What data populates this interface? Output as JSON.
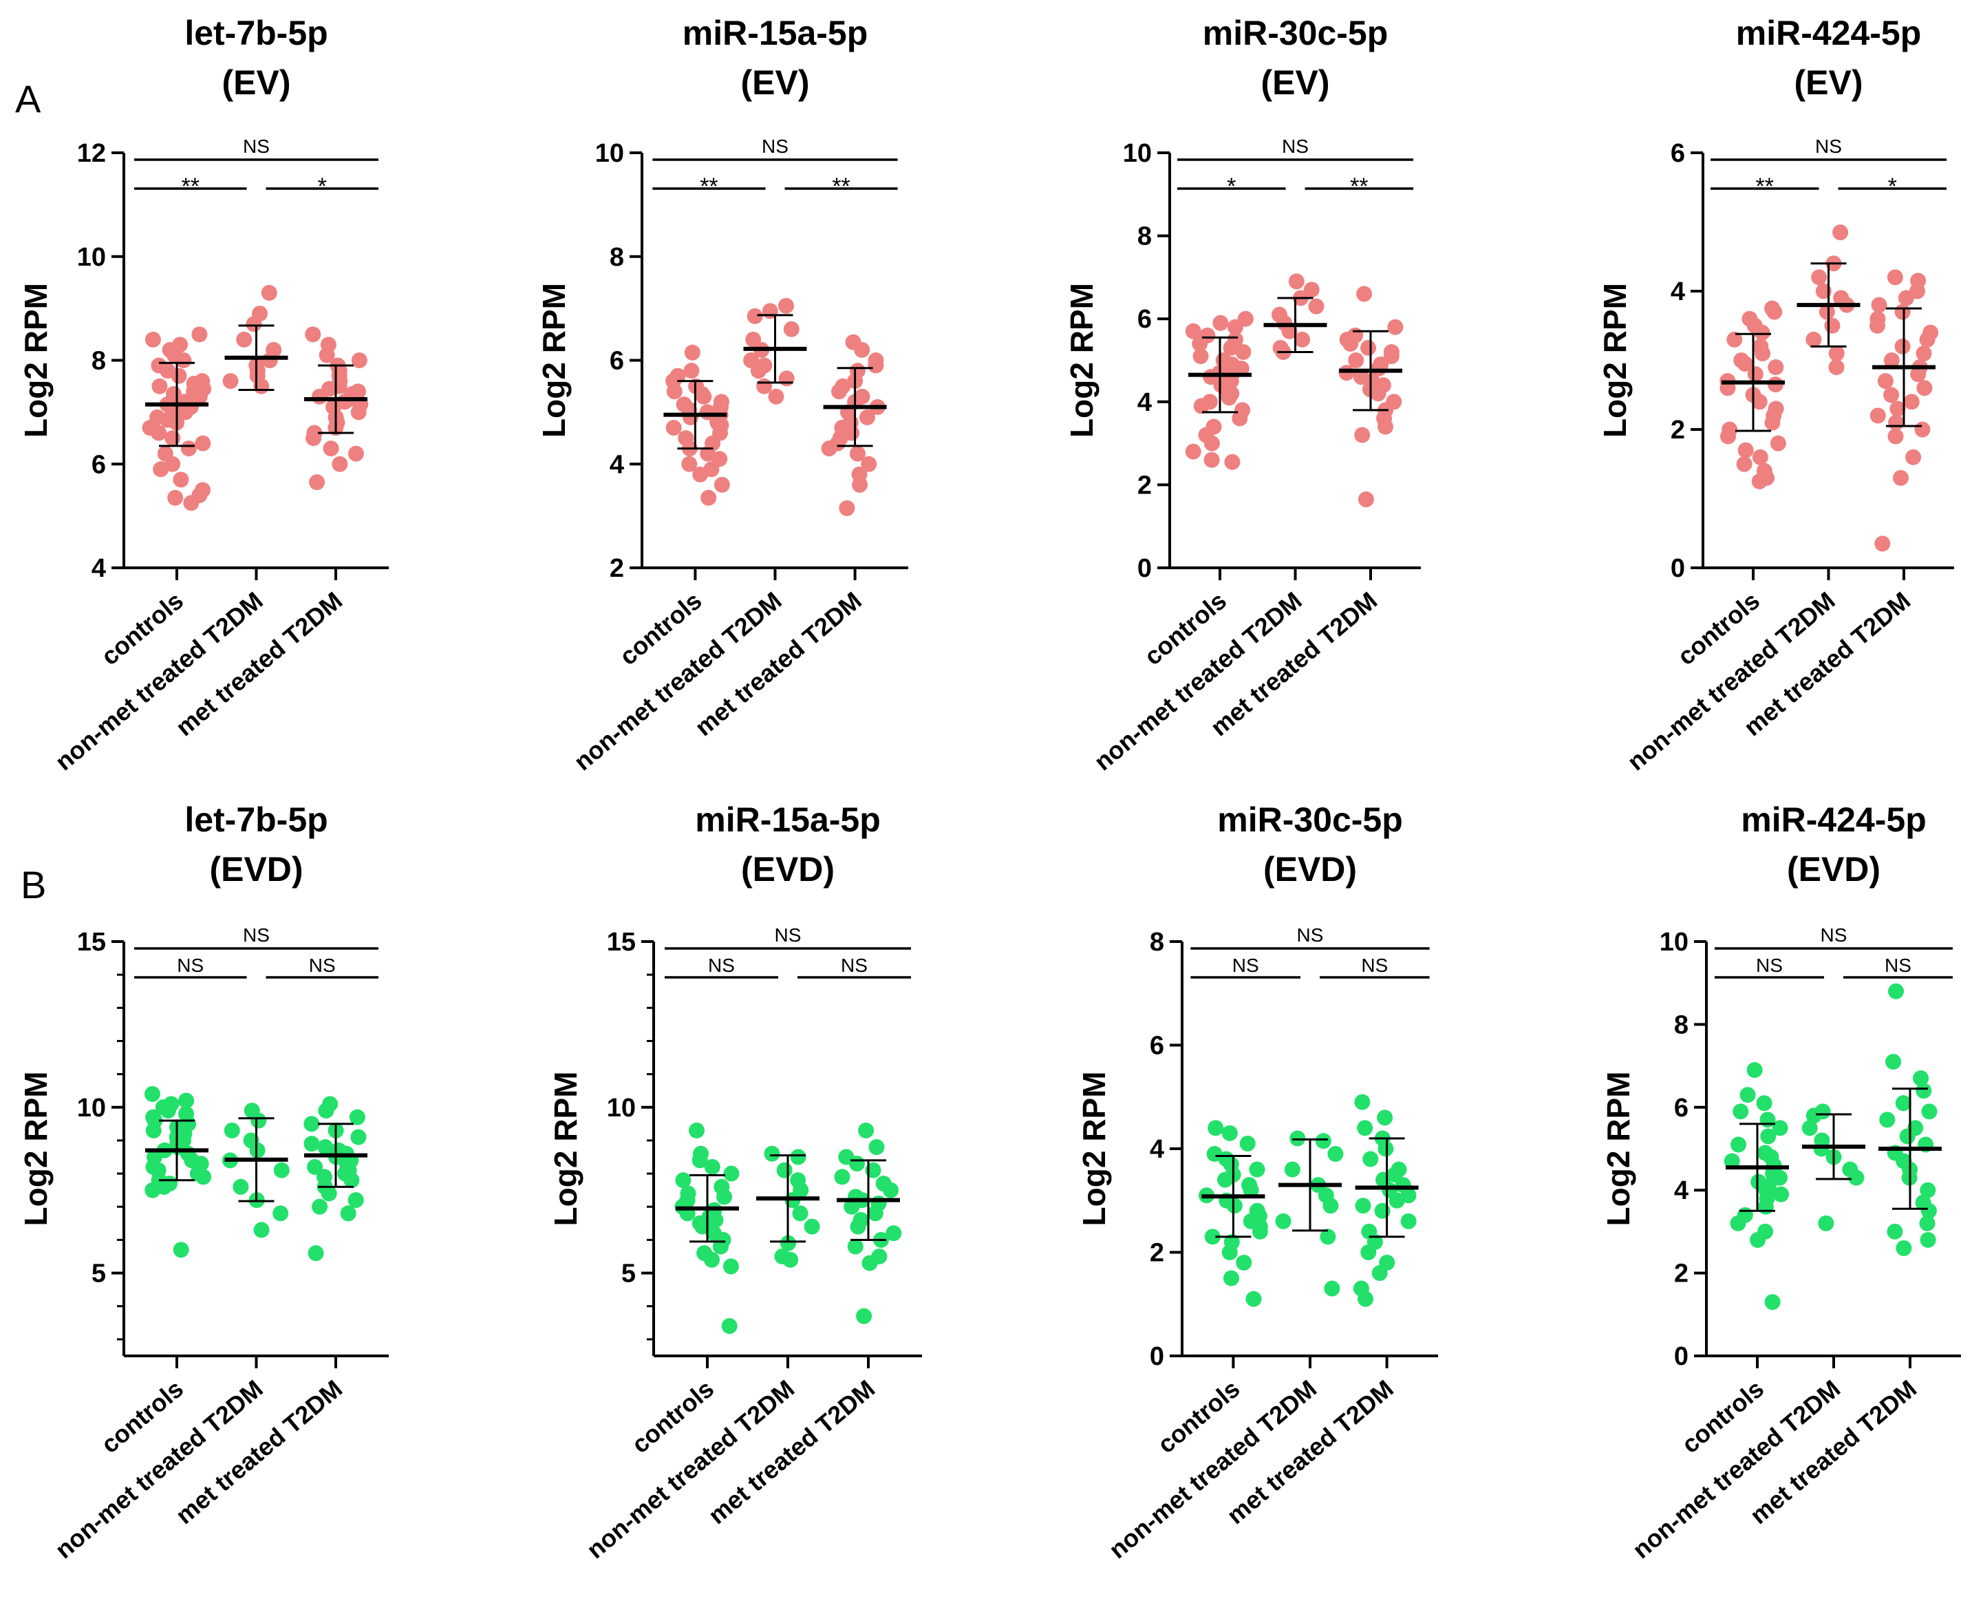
{
  "panel_labels": [
    "A",
    "B"
  ],
  "styles": {
    "ev_dot_color": "#ee8080",
    "evd_dot_color": "#22e06a",
    "line_color": "#000000"
  },
  "chart_data": [
    {
      "type": "scatter",
      "title": "let-7b-5p",
      "subtitle": "(EV)",
      "ylabel": "Log2 RPM",
      "categories": [
        "controls",
        "non-met treated T2DM",
        "met treated T2DM"
      ],
      "ylim": [
        4,
        12
      ],
      "yticks": [
        4,
        6,
        8,
        10,
        12
      ],
      "minor_ticks": false,
      "summary": [
        {
          "mean": 7.15,
          "sd": 0.8
        },
        {
          "mean": 8.05,
          "sd": 0.62
        },
        {
          "mean": 7.25,
          "sd": 0.65
        }
      ],
      "points": [
        [
          8.5,
          8.4,
          8.3,
          8.2,
          8.1,
          8.0,
          7.9,
          7.8,
          7.7,
          7.6,
          7.55,
          7.5,
          7.45,
          7.4,
          7.35,
          7.3,
          7.25,
          7.2,
          7.15,
          7.1,
          7.05,
          7.0,
          6.95,
          6.9,
          6.85,
          6.8,
          6.7,
          6.6,
          6.5,
          6.4,
          6.3,
          6.2,
          6.0,
          5.9,
          5.7,
          5.5,
          5.4,
          5.35,
          5.25
        ],
        [
          9.3,
          8.9,
          8.7,
          8.4,
          8.2,
          8.0,
          7.9,
          7.8,
          7.7,
          7.6,
          7.5
        ],
        [
          8.5,
          8.3,
          8.1,
          8.0,
          7.9,
          7.8,
          7.7,
          7.6,
          7.5,
          7.45,
          7.4,
          7.35,
          7.3,
          7.25,
          7.2,
          7.15,
          7.1,
          7.0,
          6.9,
          6.8,
          6.7,
          6.6,
          6.5,
          6.3,
          6.2,
          6.0,
          5.65
        ]
      ],
      "significance": {
        "top": "NS",
        "left": "**",
        "right": "*"
      }
    },
    {
      "type": "scatter",
      "title": "miR-15a-5p",
      "subtitle": "(EV)",
      "ylabel": "Log2 RPM",
      "categories": [
        "controls",
        "non-met treated T2DM",
        "met treated T2DM"
      ],
      "ylim": [
        2,
        10
      ],
      "yticks": [
        2,
        4,
        6,
        8,
        10
      ],
      "minor_ticks": false,
      "summary": [
        {
          "mean": 4.95,
          "sd": 0.65
        },
        {
          "mean": 6.22,
          "sd": 0.65
        },
        {
          "mean": 5.1,
          "sd": 0.75
        }
      ],
      "points": [
        [
          6.15,
          5.8,
          5.7,
          5.6,
          5.5,
          5.4,
          5.35,
          5.3,
          5.2,
          5.15,
          5.1,
          5.05,
          5.0,
          4.95,
          4.9,
          4.85,
          4.8,
          4.75,
          4.7,
          4.6,
          4.5,
          4.4,
          4.3,
          4.2,
          4.1,
          4.0,
          3.9,
          3.8,
          3.6,
          3.35
        ],
        [
          7.05,
          6.95,
          6.85,
          6.6,
          6.4,
          6.2,
          6.0,
          5.9,
          5.8,
          5.65,
          5.5,
          5.3
        ],
        [
          6.35,
          6.2,
          6.0,
          5.9,
          5.8,
          5.6,
          5.5,
          5.4,
          5.3,
          5.2,
          5.1,
          5.0,
          4.9,
          4.8,
          4.7,
          4.6,
          4.5,
          4.4,
          4.3,
          4.2,
          4.0,
          3.8,
          3.6,
          3.15
        ]
      ],
      "significance": {
        "top": "NS",
        "left": "**",
        "right": "**"
      }
    },
    {
      "type": "scatter",
      "title": "miR-30c-5p",
      "subtitle": "(EV)",
      "ylabel": "Log2 RPM",
      "categories": [
        "controls",
        "non-met treated T2DM",
        "met treated T2DM"
      ],
      "ylim": [
        0,
        10
      ],
      "yticks": [
        0,
        2,
        4,
        6,
        8,
        10
      ],
      "minor_ticks": false,
      "summary": [
        {
          "mean": 4.65,
          "sd": 0.9
        },
        {
          "mean": 5.85,
          "sd": 0.65
        },
        {
          "mean": 4.75,
          "sd": 0.95
        }
      ],
      "points": [
        [
          6.0,
          5.9,
          5.8,
          5.7,
          5.6,
          5.5,
          5.4,
          5.3,
          5.2,
          5.1,
          5.0,
          4.9,
          4.8,
          4.7,
          4.65,
          4.6,
          4.5,
          4.4,
          4.3,
          4.2,
          4.1,
          4.0,
          3.9,
          3.8,
          3.6,
          3.4,
          3.2,
          3.0,
          2.8,
          2.6,
          2.55
        ],
        [
          6.9,
          6.7,
          6.5,
          6.3,
          6.1,
          5.9,
          5.7,
          5.5,
          5.3,
          5.2
        ],
        [
          6.6,
          5.8,
          5.6,
          5.5,
          5.4,
          5.3,
          5.2,
          5.1,
          5.0,
          4.9,
          4.8,
          4.7,
          4.6,
          4.5,
          4.4,
          4.3,
          4.2,
          4.0,
          3.8,
          3.6,
          3.4,
          3.2,
          1.65
        ]
      ],
      "significance": {
        "top": "NS",
        "left": "*",
        "right": "**"
      }
    },
    {
      "type": "scatter",
      "title": "miR-424-5p",
      "subtitle": "(EV)",
      "ylabel": "Log2 RPM",
      "categories": [
        "controls",
        "non-met treated T2DM",
        "met treated T2DM"
      ],
      "ylim": [
        0,
        6
      ],
      "yticks": [
        0,
        2,
        4,
        6
      ],
      "minor_ticks": false,
      "summary": [
        {
          "mean": 2.68,
          "sd": 0.7
        },
        {
          "mean": 3.8,
          "sd": 0.6
        },
        {
          "mean": 2.9,
          "sd": 0.85
        }
      ],
      "points": [
        [
          3.75,
          3.7,
          3.6,
          3.5,
          3.4,
          3.3,
          3.2,
          3.1,
          3.0,
          2.95,
          2.9,
          2.8,
          2.7,
          2.65,
          2.6,
          2.5,
          2.4,
          2.3,
          2.2,
          2.1,
          2.0,
          1.9,
          1.8,
          1.7,
          1.6,
          1.5,
          1.4,
          1.3,
          1.25
        ],
        [
          4.85,
          4.4,
          4.2,
          4.0,
          3.9,
          3.8,
          3.7,
          3.5,
          3.3,
          3.1,
          2.9
        ],
        [
          4.2,
          4.15,
          4.0,
          3.9,
          3.8,
          3.7,
          3.6,
          3.5,
          3.4,
          3.3,
          3.2,
          3.1,
          3.0,
          2.9,
          2.8,
          2.7,
          2.6,
          2.5,
          2.4,
          2.3,
          2.2,
          2.1,
          2.0,
          1.9,
          1.6,
          1.3,
          0.35
        ]
      ],
      "significance": {
        "top": "NS",
        "left": "**",
        "right": "*"
      }
    },
    {
      "type": "scatter",
      "title": "let-7b-5p",
      "subtitle": "(EVD)",
      "ylabel": "Log2 RPM",
      "categories": [
        "controls",
        "non-met treated T2DM",
        "met treated T2DM"
      ],
      "ylim": [
        2.5,
        15
      ],
      "yticks": [
        5,
        10,
        15
      ],
      "minor_ticks": true,
      "summary": [
        {
          "mean": 8.7,
          "sd": 0.9
        },
        {
          "mean": 8.42,
          "sd": 1.25
        },
        {
          "mean": 8.55,
          "sd": 0.95
        }
      ],
      "points": [
        [
          10.4,
          10.2,
          10.1,
          10.0,
          9.9,
          9.8,
          9.7,
          9.6,
          9.5,
          9.4,
          9.3,
          9.2,
          9.1,
          9.0,
          8.9,
          8.8,
          8.7,
          8.6,
          8.5,
          8.4,
          8.3,
          8.2,
          8.1,
          8.0,
          7.9,
          7.8,
          7.7,
          7.6,
          7.5,
          5.7
        ],
        [
          9.9,
          9.6,
          9.3,
          9.0,
          8.7,
          8.4,
          8.1,
          7.6,
          7.2,
          6.8,
          6.3
        ],
        [
          10.1,
          9.9,
          9.7,
          9.5,
          9.3,
          9.1,
          8.9,
          8.8,
          8.7,
          8.6,
          8.5,
          8.4,
          8.3,
          8.2,
          8.1,
          8.0,
          7.9,
          7.8,
          7.6,
          7.4,
          7.2,
          7.0,
          6.8,
          5.6
        ]
      ],
      "significance": {
        "top": "NS",
        "left": "NS",
        "right": "NS"
      }
    },
    {
      "type": "scatter",
      "title": "miR-15a-5p",
      "subtitle": "(EVD)",
      "ylabel": "Log2 RPM",
      "categories": [
        "controls",
        "non-met treated T2DM",
        "met treated T2DM"
      ],
      "ylim": [
        2.5,
        15
      ],
      "yticks": [
        5,
        10,
        15
      ],
      "minor_ticks": true,
      "summary": [
        {
          "mean": 6.95,
          "sd": 1.0
        },
        {
          "mean": 7.25,
          "sd": 1.3
        },
        {
          "mean": 7.2,
          "sd": 1.2
        }
      ],
      "points": [
        [
          9.3,
          8.6,
          8.4,
          8.2,
          8.0,
          7.8,
          7.6,
          7.4,
          7.3,
          7.2,
          7.1,
          7.0,
          6.9,
          6.8,
          6.7,
          6.6,
          6.5,
          6.4,
          6.2,
          6.0,
          5.8,
          5.6,
          5.4,
          5.2,
          3.4
        ],
        [
          8.6,
          8.5,
          8.1,
          7.8,
          7.5,
          7.2,
          6.8,
          6.4,
          5.9,
          5.5,
          5.4
        ],
        [
          9.3,
          8.8,
          8.5,
          8.3,
          8.1,
          7.9,
          7.7,
          7.5,
          7.3,
          7.2,
          7.1,
          7.0,
          6.8,
          6.6,
          6.4,
          6.2,
          6.0,
          5.8,
          5.5,
          5.3,
          3.7
        ]
      ],
      "significance": {
        "top": "NS",
        "left": "NS",
        "right": "NS"
      }
    },
    {
      "type": "scatter",
      "title": "miR-30c-5p",
      "subtitle": "(EVD)",
      "ylabel": "Log2 RPM",
      "categories": [
        "controls",
        "non-met treated T2DM",
        "met treated T2DM"
      ],
      "ylim": [
        0,
        8
      ],
      "yticks": [
        0,
        2,
        4,
        6,
        8
      ],
      "minor_ticks": false,
      "summary": [
        {
          "mean": 3.08,
          "sd": 0.78
        },
        {
          "mean": 3.3,
          "sd": 0.88
        },
        {
          "mean": 3.25,
          "sd": 0.95
        }
      ],
      "points": [
        [
          4.4,
          4.3,
          4.1,
          3.9,
          3.8,
          3.7,
          3.6,
          3.5,
          3.4,
          3.3,
          3.2,
          3.1,
          3.0,
          2.9,
          2.8,
          2.7,
          2.6,
          2.5,
          2.4,
          2.3,
          2.2,
          2.0,
          1.8,
          1.5,
          1.1
        ],
        [
          4.2,
          4.15,
          3.9,
          3.6,
          3.3,
          3.1,
          2.9,
          2.6,
          2.3,
          1.3
        ],
        [
          4.9,
          4.6,
          4.4,
          4.2,
          4.0,
          3.8,
          3.6,
          3.5,
          3.4,
          3.3,
          3.2,
          3.1,
          3.0,
          2.9,
          2.8,
          2.6,
          2.4,
          2.2,
          2.0,
          1.8,
          1.6,
          1.3,
          1.1
        ]
      ],
      "significance": {
        "top": "NS",
        "left": "NS",
        "right": "NS"
      }
    },
    {
      "type": "scatter",
      "title": "miR-424-5p",
      "subtitle": "(EVD)",
      "ylabel": "Log2 RPM",
      "categories": [
        "controls",
        "non-met treated T2DM",
        "met treated T2DM"
      ],
      "ylim": [
        0,
        10
      ],
      "yticks": [
        0,
        2,
        4,
        6,
        8,
        10
      ],
      "minor_ticks": false,
      "summary": [
        {
          "mean": 4.55,
          "sd": 1.05
        },
        {
          "mean": 5.05,
          "sd": 0.78
        },
        {
          "mean": 5.0,
          "sd": 1.45
        }
      ],
      "points": [
        [
          6.9,
          6.3,
          6.1,
          5.9,
          5.7,
          5.5,
          5.3,
          5.1,
          4.9,
          4.8,
          4.7,
          4.6,
          4.5,
          4.4,
          4.3,
          4.2,
          4.1,
          4.0,
          3.9,
          3.8,
          3.6,
          3.4,
          3.2,
          3.0,
          2.8,
          1.3
        ],
        [
          5.9,
          5.8,
          5.5,
          5.2,
          5.0,
          4.8,
          4.5,
          4.3,
          3.2
        ],
        [
          8.8,
          7.1,
          6.7,
          6.4,
          6.1,
          5.9,
          5.7,
          5.5,
          5.3,
          5.1,
          4.9,
          4.7,
          4.5,
          4.3,
          4.0,
          3.7,
          3.5,
          3.2,
          3.0,
          2.8,
          2.6
        ]
      ],
      "significance": {
        "top": "NS",
        "left": "NS",
        "right": "NS"
      }
    }
  ]
}
